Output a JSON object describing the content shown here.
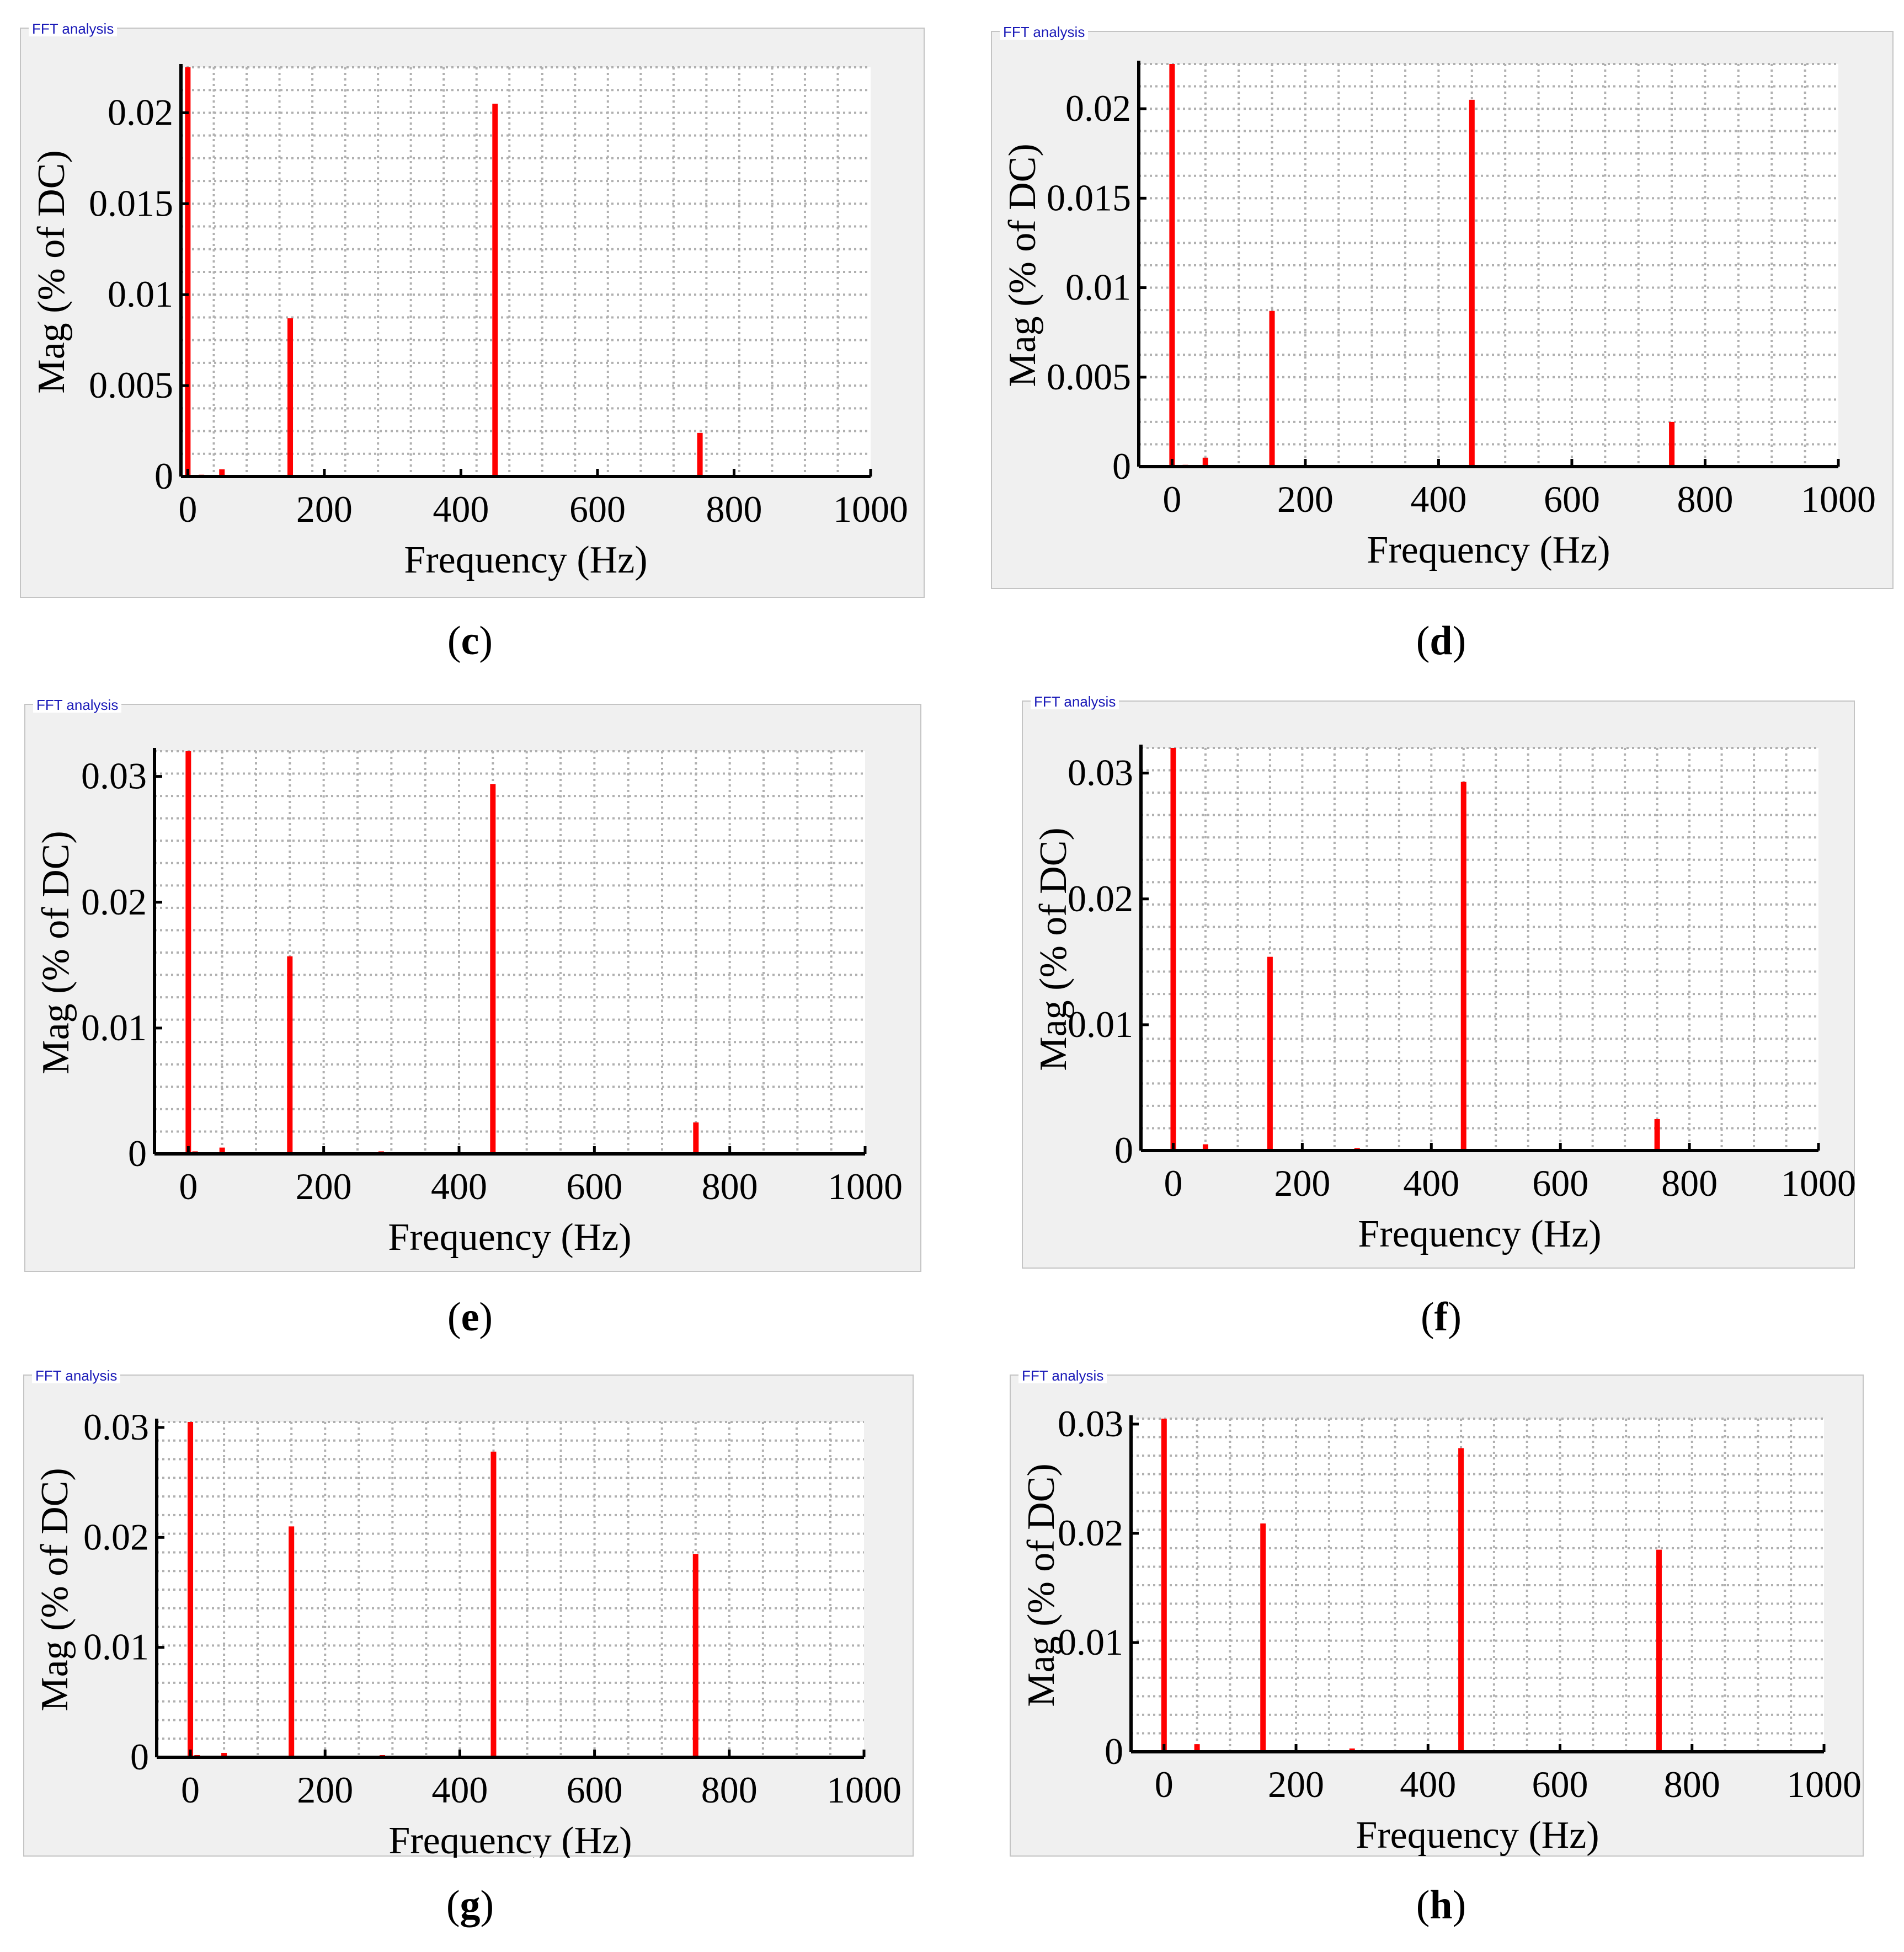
{
  "chart_data": [
    {
      "id": "c",
      "type": "bar",
      "panel_title": "FFT analysis",
      "caption": "c",
      "xlabel": "Frequency (Hz)",
      "ylabel": "Mag (% of DC)",
      "xlim": [
        -10,
        1000
      ],
      "ylim": [
        0,
        0.0225
      ],
      "xticks": [
        0,
        200,
        400,
        600,
        800,
        1000
      ],
      "xtick_labels": [
        "0",
        "200",
        "400",
        "600",
        "800",
        "1000"
      ],
      "yticks": [
        0,
        0.005,
        0.01,
        0.015,
        0.02
      ],
      "ytick_labels": [
        "0",
        "0.005",
        "0.01",
        "0.015",
        "0.02"
      ],
      "x": [
        0,
        20,
        50,
        150,
        450,
        750
      ],
      "values": [
        0.0225,
        0.0001,
        0.0004,
        0.0087,
        0.0205,
        0.0024
      ]
    },
    {
      "id": "d",
      "type": "bar",
      "panel_title": "FFT analysis",
      "caption": "d",
      "xlabel": "Frequency (Hz)",
      "ylabel": "Mag (% of DC)",
      "xlim": [
        -50,
        1000
      ],
      "ylim": [
        0,
        0.0225
      ],
      "xticks": [
        0,
        200,
        400,
        600,
        800,
        1000
      ],
      "xtick_labels": [
        "0",
        "200",
        "400",
        "600",
        "800",
        "1000"
      ],
      "yticks": [
        0,
        0.005,
        0.01,
        0.015,
        0.02
      ],
      "ytick_labels": [
        "0",
        "0.005",
        "0.01",
        "0.015",
        "0.02"
      ],
      "x": [
        0,
        20,
        50,
        150,
        450,
        750
      ],
      "values": [
        0.0225,
        0.0001,
        0.0005,
        0.0087,
        0.0205,
        0.0025
      ]
    },
    {
      "id": "e",
      "type": "bar",
      "panel_title": "FFT analysis",
      "caption": "e",
      "xlabel": "Frequency (Hz)",
      "ylabel": "Mag (% of DC)",
      "xlim": [
        -50,
        1000
      ],
      "ylim": [
        0,
        0.032
      ],
      "xticks": [
        0,
        200,
        400,
        600,
        800,
        1000
      ],
      "xtick_labels": [
        "0",
        "200",
        "400",
        "600",
        "800",
        "1000"
      ],
      "yticks": [
        0,
        0.01,
        0.02,
        0.03
      ],
      "ytick_labels": [
        "0",
        "0.01",
        "0.02",
        "0.03"
      ],
      "x": [
        0,
        10,
        50,
        150,
        285,
        450,
        750
      ],
      "values": [
        0.032,
        0.0002,
        0.0005,
        0.0157,
        0.0002,
        0.0294,
        0.0025
      ]
    },
    {
      "id": "f",
      "type": "bar",
      "panel_title": "FFT analysis",
      "caption": "f",
      "xlabel": "Frequency (Hz)",
      "ylabel": "Mag (% of DC)",
      "xlim": [
        -50,
        1000
      ],
      "ylim": [
        0,
        0.032
      ],
      "xticks": [
        0,
        200,
        400,
        600,
        800,
        1000
      ],
      "xtick_labels": [
        "0",
        "200",
        "400",
        "600",
        "800",
        "1000"
      ],
      "yticks": [
        0,
        0.01,
        0.02,
        0.03
      ],
      "ytick_labels": [
        "0",
        "0.01",
        "0.02",
        "0.03"
      ],
      "x": [
        0,
        50,
        150,
        285,
        450,
        750
      ],
      "values": [
        0.032,
        0.0005,
        0.0154,
        0.0002,
        0.0293,
        0.0025
      ]
    },
    {
      "id": "g",
      "type": "bar",
      "panel_title": "FFT analysis",
      "caption": "g",
      "xlabel": "Frequency (Hz)",
      "ylabel": "Mag (% of DC)",
      "xlim": [
        -50,
        1000
      ],
      "ylim": [
        0,
        0.0305
      ],
      "xticks": [
        0,
        200,
        400,
        600,
        800,
        1000
      ],
      "xtick_labels": [
        "0",
        "200",
        "400",
        "600",
        "800",
        "1000"
      ],
      "yticks": [
        0,
        0.01,
        0.02,
        0.03
      ],
      "ytick_labels": [
        "0",
        "0.01",
        "0.02",
        "0.03"
      ],
      "x": [
        0,
        10,
        50,
        150,
        285,
        450,
        750
      ],
      "values": [
        0.0305,
        0.0002,
        0.0004,
        0.021,
        0.0002,
        0.0278,
        0.0185
      ]
    },
    {
      "id": "h",
      "type": "bar",
      "panel_title": "FFT analysis",
      "caption": "h",
      "xlabel": "Frequency (Hz)",
      "ylabel": "Mag (% of DC)",
      "xlim": [
        -50,
        1000
      ],
      "ylim": [
        0,
        0.0305
      ],
      "xticks": [
        0,
        200,
        400,
        600,
        800,
        1000
      ],
      "xtick_labels": [
        "0",
        "200",
        "400",
        "600",
        "800",
        "1000"
      ],
      "yticks": [
        0,
        0.01,
        0.02,
        0.03
      ],
      "ytick_labels": [
        "0",
        "0.01",
        "0.02",
        "0.03"
      ],
      "x": [
        0,
        50,
        150,
        285,
        450,
        750
      ],
      "values": [
        0.0305,
        0.0007,
        0.0209,
        0.0003,
        0.0278,
        0.0185
      ]
    }
  ],
  "colors": {
    "bar": "#ff0000",
    "grid": "#b0b0b0",
    "axis": "#000000",
    "panel_bg": "#f0f0f0",
    "plot_bg": "#ffffff"
  }
}
